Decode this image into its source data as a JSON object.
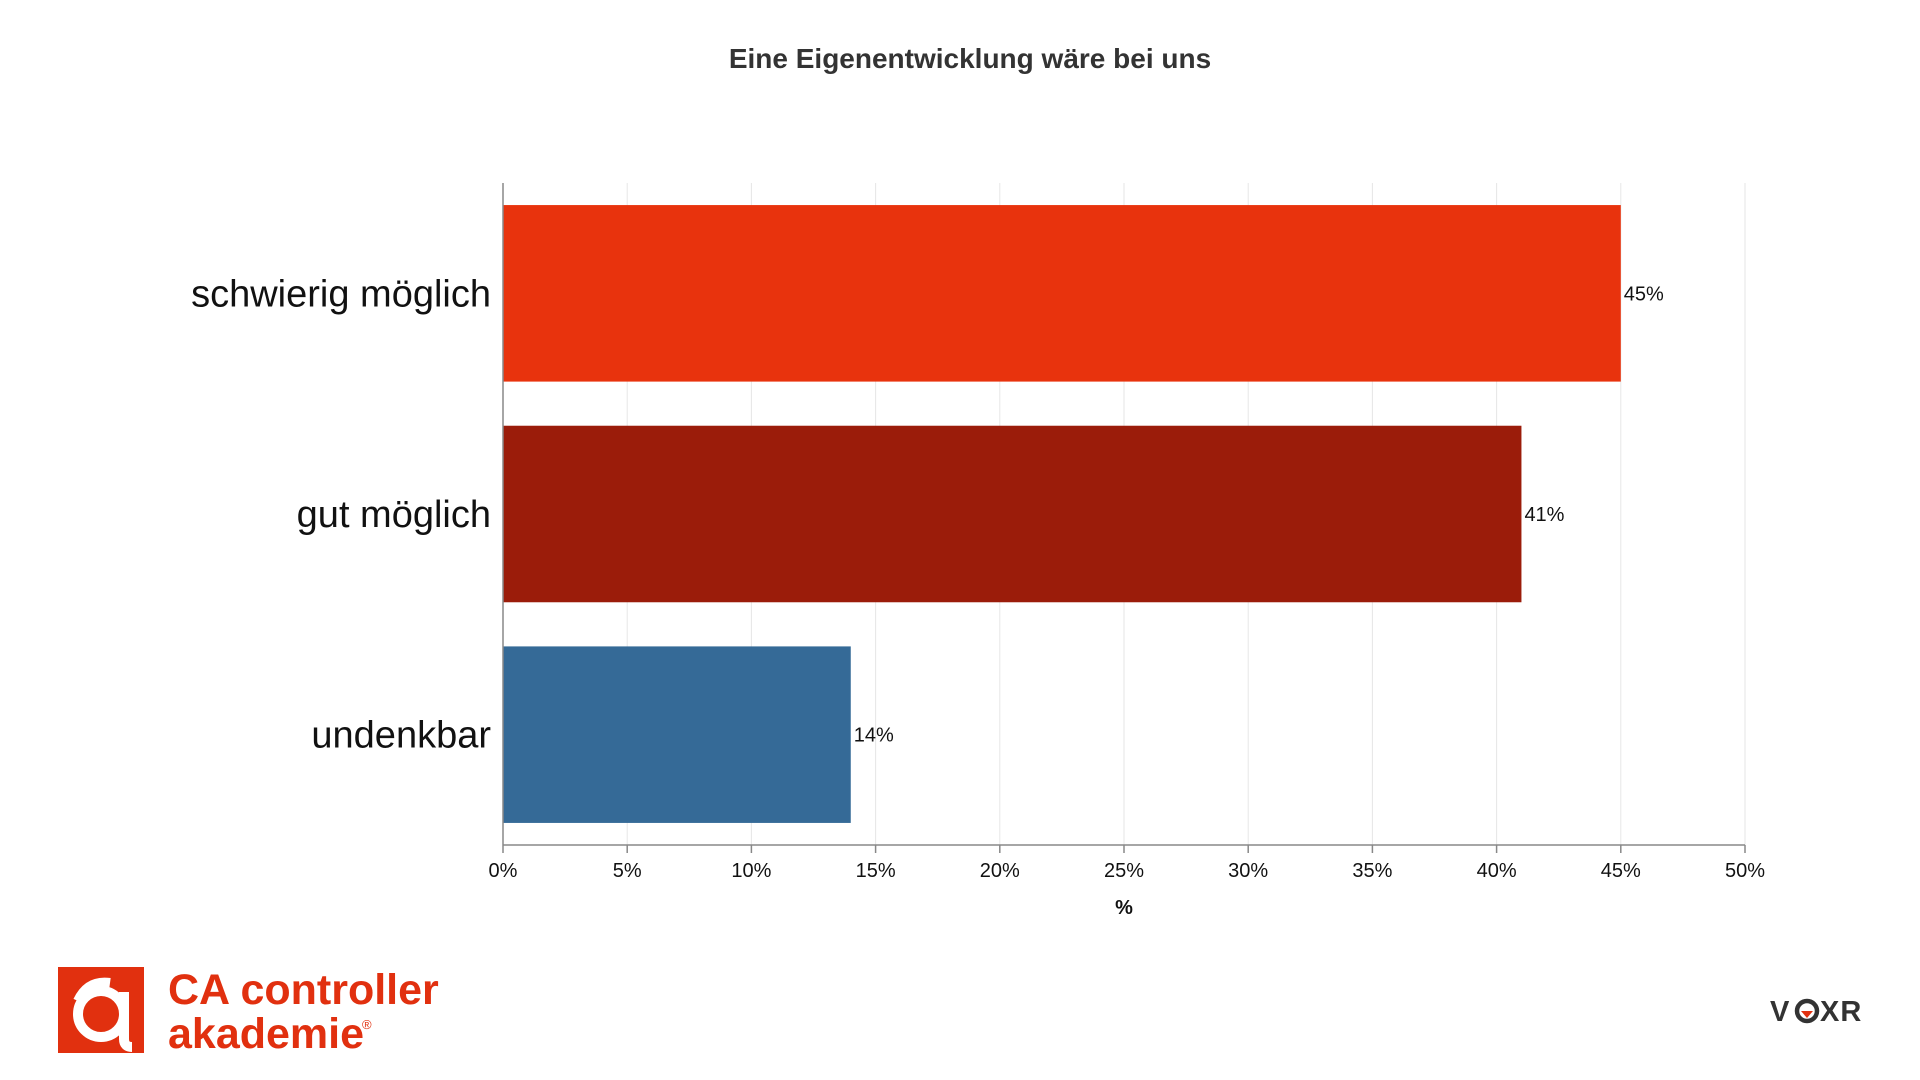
{
  "chart_data": {
    "type": "bar",
    "orientation": "horizontal",
    "title": "Eine Eigenentwicklung wäre bei uns",
    "categories": [
      "schwierig möglich",
      "gut möglich",
      "undenkbar"
    ],
    "values": [
      45,
      41,
      14
    ],
    "data_labels": [
      "45%",
      "41%",
      "14%"
    ],
    "colors": [
      "#e8330d",
      "#9b1c0a",
      "#356a97"
    ],
    "xlabel": "%",
    "ylabel": "",
    "xlim": [
      0,
      50
    ],
    "x_ticks": [
      0,
      5,
      10,
      15,
      20,
      25,
      30,
      35,
      40,
      45,
      50
    ],
    "x_tick_labels": [
      "0%",
      "5%",
      "10%",
      "15%",
      "20%",
      "25%",
      "30%",
      "35%",
      "40%",
      "45%",
      "50%"
    ],
    "grid": true,
    "legend": "none"
  },
  "branding": {
    "left_logo": {
      "line1": "CA controller",
      "line2": "akademie",
      "registered": "®",
      "color": "#e1300f",
      "icon": "ca-controller-akademie-logo-icon"
    },
    "right_logo": {
      "text_before": "V",
      "text_after": "XR",
      "accent_color": "#e1300f",
      "icon": "voxr-logo"
    }
  }
}
